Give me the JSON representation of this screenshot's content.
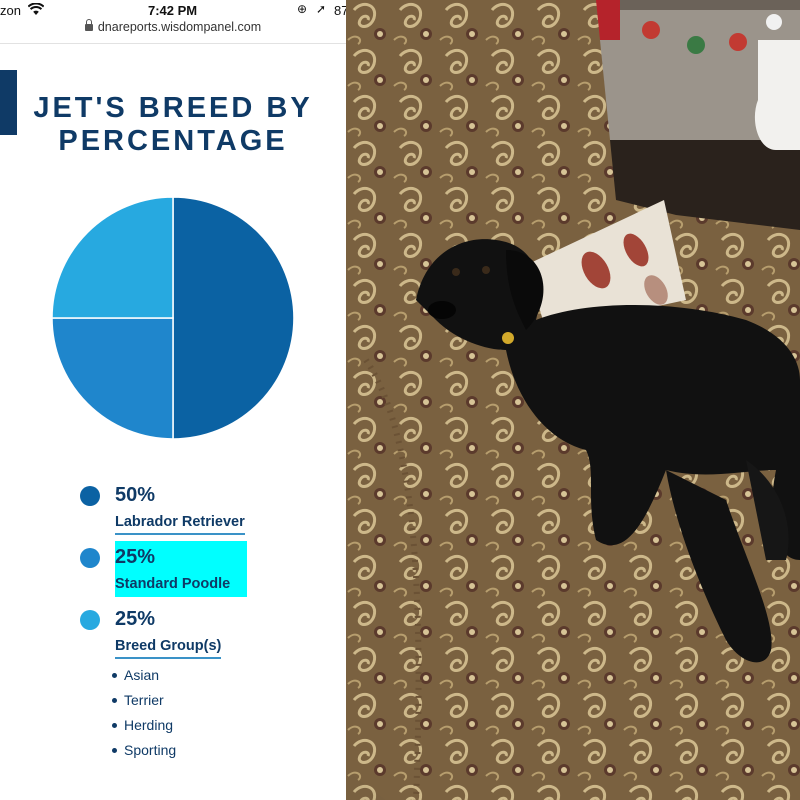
{
  "status_bar": {
    "carrier": "zon",
    "time": "7:42 PM",
    "battery": "87"
  },
  "url_bar": {
    "domain": "dnareports.wisdompanel.com"
  },
  "page": {
    "title_line1": "JET'S BREED BY",
    "title_line2": "PERCENTAGE"
  },
  "colors": {
    "navy": "#0f3a66",
    "slice_labrador": "#0b62a3",
    "slice_poodle": "#1f86cc",
    "slice_group": "#27a9e0",
    "highlight": "#00ffff"
  },
  "chart_data": {
    "type": "pie",
    "categories": [
      "Labrador Retriever",
      "Standard Poodle",
      "Breed Group(s)"
    ],
    "values": [
      50,
      25,
      25
    ]
  },
  "legend": [
    {
      "percent": "50%",
      "name": "Labrador Retriever"
    },
    {
      "percent": "25%",
      "name": "Standard Poodle"
    },
    {
      "percent": "25%",
      "name": "Breed Group(s)"
    }
  ],
  "breed_groups": [
    "Asian",
    "Terrier",
    "Herding",
    "Sporting"
  ]
}
